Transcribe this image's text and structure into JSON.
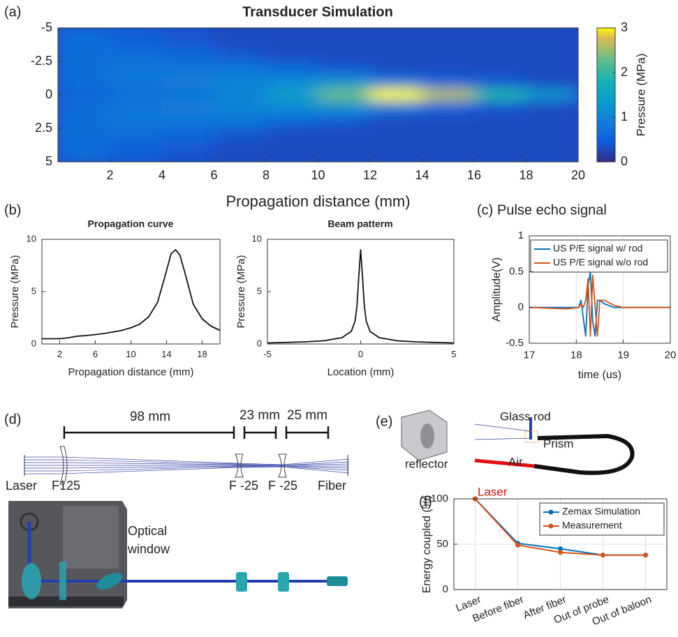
{
  "panel_labels": [
    "(a)",
    "(b)",
    "(c)",
    "(d)",
    "(e)",
    "(f)"
  ],
  "diagram_d": {
    "dimensions": [
      "98 mm",
      "23 mm",
      "25 mm"
    ],
    "labels": [
      "Laser",
      "F125",
      "F -25",
      "F -25",
      "Fiber",
      "Optical",
      "window"
    ]
  },
  "diagram_e": {
    "labels": [
      "Glass rod",
      "Prism",
      "Air",
      "reflector",
      "Laser"
    ]
  },
  "chart_data": [
    {
      "type": "heatmap",
      "title": "Transducer Simulation",
      "x_label": "Propagation distance (mm)",
      "colorbar_label": "Pressure (MPa)",
      "x": [
        1,
        3,
        5,
        7,
        9,
        11,
        13,
        15,
        17,
        19
      ],
      "y": [
        -4,
        -3,
        -2,
        -1,
        0,
        1,
        2,
        3,
        4
      ],
      "values": [
        [
          0.7,
          0.5,
          0.4,
          0.3,
          0.3,
          0.3,
          0.3,
          0.3,
          0.3,
          0.3
        ],
        [
          0.7,
          0.7,
          0.6,
          0.4,
          0.3,
          0.3,
          0.3,
          0.3,
          0.3,
          0.3
        ],
        [
          0.7,
          0.8,
          0.8,
          0.8,
          0.6,
          0.4,
          0.3,
          0.3,
          0.3,
          0.3
        ],
        [
          0.7,
          0.8,
          0.9,
          1.0,
          1.1,
          1.2,
          0.8,
          0.5,
          0.4,
          0.3
        ],
        [
          0.6,
          0.7,
          0.8,
          1.0,
          1.4,
          2.3,
          3.0,
          2.6,
          1.9,
          1.2
        ],
        [
          0.7,
          0.8,
          0.9,
          1.0,
          1.1,
          1.2,
          0.8,
          0.5,
          0.4,
          0.3
        ],
        [
          0.7,
          0.8,
          0.8,
          0.8,
          0.6,
          0.4,
          0.3,
          0.3,
          0.3,
          0.3
        ],
        [
          0.7,
          0.7,
          0.6,
          0.4,
          0.3,
          0.3,
          0.3,
          0.3,
          0.3,
          0.3
        ],
        [
          0.7,
          0.5,
          0.4,
          0.3,
          0.3,
          0.3,
          0.3,
          0.3,
          0.3,
          0.3
        ]
      ],
      "xlim": [
        0,
        20
      ],
      "xticks": [
        2,
        4,
        6,
        8,
        10,
        12,
        14,
        16,
        18,
        20
      ],
      "ylim": [
        -5,
        5
      ],
      "yticks": [
        -5,
        -2.5,
        0,
        2.5,
        5
      ],
      "y_reversed": true,
      "clim": [
        0,
        3
      ],
      "cticks": [
        0,
        1,
        2,
        3
      ],
      "colormap": "parula"
    },
    {
      "type": "line",
      "title": "Propagation curve",
      "x_label": "Propagation distance (mm)",
      "y_label": "Pressure (MPa)",
      "x": [
        0,
        1,
        2,
        3,
        4,
        5,
        6,
        7,
        8,
        9,
        10,
        11,
        12,
        13,
        14,
        14.5,
        15,
        15.5,
        16,
        17,
        18,
        19,
        20
      ],
      "series": [
        {
          "color": "#111111",
          "values": [
            0.5,
            0.5,
            0.5,
            0.6,
            0.75,
            0.8,
            0.9,
            1.0,
            1.15,
            1.3,
            1.55,
            1.9,
            2.6,
            4.0,
            7.0,
            8.6,
            9.0,
            8.5,
            7.0,
            3.8,
            2.4,
            1.7,
            1.3
          ]
        }
      ],
      "xlim": [
        0,
        20
      ],
      "xticks": [
        2,
        6,
        10,
        14,
        18
      ],
      "ylim": [
        0,
        10
      ],
      "yticks": [
        0,
        5,
        10
      ],
      "grid": false
    },
    {
      "type": "line",
      "title": "Beam patterm",
      "x_label": "Location (mm)",
      "y_label": "Pressure (MPa)",
      "x": [
        -5,
        -4,
        -3,
        -2,
        -1,
        -0.5,
        -0.3,
        -0.2,
        -0.1,
        0,
        0.1,
        0.2,
        0.3,
        0.5,
        1,
        2,
        3,
        4,
        5
      ],
      "series": [
        {
          "color": "#111111",
          "values": [
            0.1,
            0.15,
            0.2,
            0.3,
            0.6,
            1.2,
            2.2,
            3.6,
            6.4,
            9.0,
            6.4,
            3.6,
            2.2,
            1.2,
            0.6,
            0.3,
            0.2,
            0.15,
            0.1
          ]
        }
      ],
      "xlim": [
        -5,
        5
      ],
      "xticks": [
        -5,
        0,
        5
      ],
      "ylim": [
        0,
        10
      ],
      "yticks": [
        0,
        5,
        10
      ],
      "grid": false
    },
    {
      "type": "line",
      "title": "Pulse echo signal",
      "x_label": "time (us)",
      "y_label": "Amplitude(V)",
      "x": [
        17,
        17.8,
        18.05,
        18.1,
        18.15,
        18.2,
        18.25,
        18.3,
        18.35,
        18.4,
        18.45,
        18.5,
        18.6,
        18.8,
        19,
        20
      ],
      "series": [
        {
          "name": "US P/E signal w/ rod",
          "color": "#0072bd",
          "values": [
            0,
            0,
            0,
            0.1,
            -0.15,
            -0.4,
            0.3,
            0.5,
            -0.2,
            -0.4,
            0.1,
            0.1,
            0.05,
            0,
            0,
            0
          ]
        },
        {
          "name": "US P/E signal w/o rod",
          "color": "#d95319",
          "values": [
            0,
            -0.02,
            0,
            0.05,
            0,
            0.1,
            0.4,
            -0.4,
            0.45,
            0,
            -0.4,
            0.1,
            0.1,
            0.03,
            0,
            0
          ]
        }
      ],
      "xlim": [
        17,
        20
      ],
      "xticks": [
        17,
        18,
        19,
        20
      ],
      "ylim": [
        -0.5,
        1
      ],
      "yticks": [
        -0.5,
        0,
        0.5,
        1
      ],
      "grid": true,
      "legend": "top"
    },
    {
      "type": "line",
      "y_label": "Energy coupled (%)",
      "categories": [
        "Laser",
        "Before fiber",
        "After fiber",
        "Out of probe",
        "Out of baloon"
      ],
      "series": [
        {
          "name": "Zemax Simulation",
          "color": "#0072bd",
          "values": [
            100,
            51,
            45,
            38,
            38
          ]
        },
        {
          "name": "Measurement",
          "color": "#d95319",
          "values": [
            100,
            49,
            41,
            38,
            38
          ]
        }
      ],
      "ylim": [
        0,
        100
      ],
      "yticks": [
        0,
        50,
        100
      ],
      "grid": true,
      "legend": "upper right",
      "markers": true
    }
  ]
}
